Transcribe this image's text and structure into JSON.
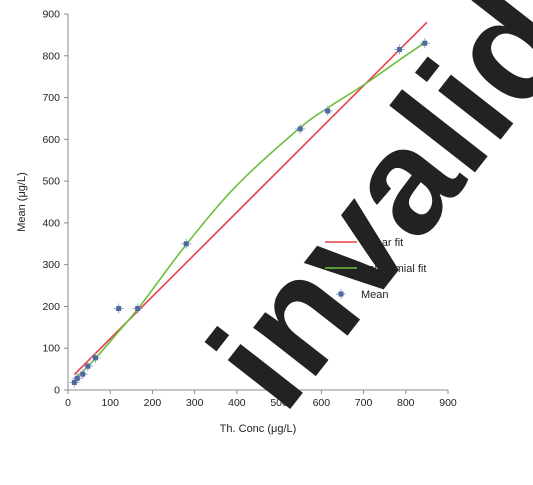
{
  "chart_data": {
    "type": "scatter",
    "xlabel": "Th. Conc (μg/L)",
    "ylabel": "Mean (μg/L)",
    "xlim": [
      0,
      900
    ],
    "ylim": [
      0,
      900
    ],
    "xticks": [
      0,
      100,
      200,
      300,
      400,
      500,
      600,
      700,
      800,
      900
    ],
    "yticks": [
      0,
      100,
      200,
      300,
      400,
      500,
      600,
      700,
      800,
      900
    ],
    "grid": false,
    "legend_position": "center-right",
    "series": [
      {
        "name": "Linear fit",
        "kind": "line",
        "color": "#e8414a",
        "x": [
          15,
          850
        ],
        "y": [
          37,
          880
        ]
      },
      {
        "name": "Polynomial fit",
        "kind": "curve",
        "color": "#6cbf3c",
        "x": [
          15,
          60,
          120,
          170,
          280,
          400,
          550,
          615,
          700,
          785,
          850
        ],
        "y": [
          25,
          70,
          140,
          200,
          348,
          490,
          628,
          675,
          730,
          790,
          835
        ]
      },
      {
        "name": "Mean",
        "kind": "markers",
        "color": "#4e6a9c",
        "x": [
          15,
          22,
          35,
          47,
          65,
          120,
          165,
          280,
          550,
          615,
          785,
          845
        ],
        "y": [
          18,
          28,
          38,
          57,
          77,
          195,
          195,
          350,
          625,
          668,
          815,
          830
        ]
      }
    ]
  },
  "watermark": {
    "text": "invalid",
    "color": "#000000"
  }
}
